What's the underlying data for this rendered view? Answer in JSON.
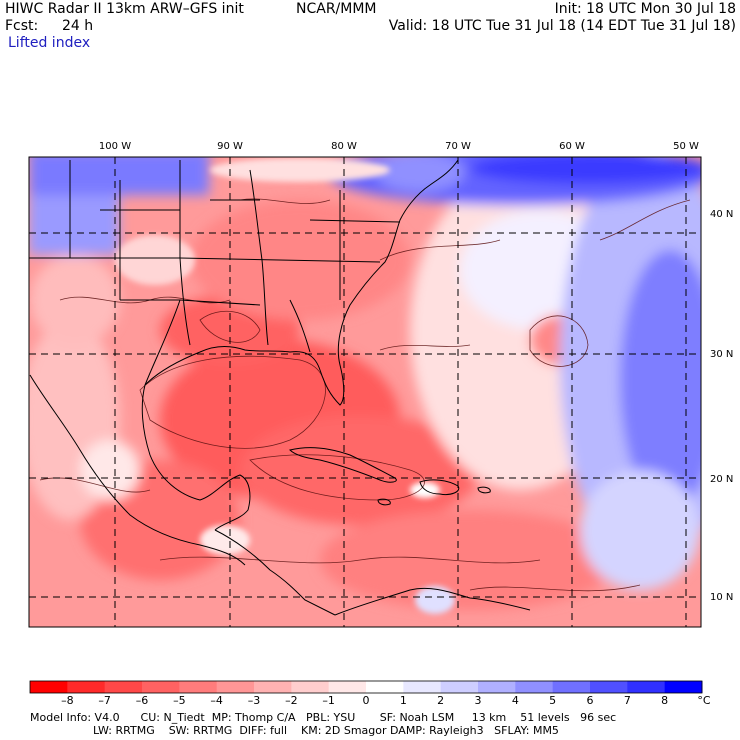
{
  "header": {
    "title_line": "HIWC Radar II 13km ARW–GFS init",
    "org": "NCAR/MMM",
    "init": "Init: 18 UTC Mon 30 Jul 18",
    "fcst_label": "Fcst:",
    "fcst_value": "24 h",
    "valid": "Valid: 18 UTC Tue 31 Jul 18 (14 EDT Tue 31 Jul 18)",
    "field": "Lifted index"
  },
  "longitudes": [
    "100 W",
    "90 W",
    "80 W",
    "70 W",
    "60 W",
    "50 W"
  ],
  "latitudes": [
    "40 N",
    "30 N",
    "20 N",
    "10 N"
  ],
  "colorscale": {
    "unit": "°C",
    "labels": [
      "–8",
      "–7",
      "–6",
      "–5",
      "–4",
      "–3",
      "–2",
      "–1",
      "0",
      "1",
      "2",
      "3",
      "4",
      "5",
      "6",
      "7",
      "8"
    ],
    "colors": [
      "#ff0000",
      "#ff2a2a",
      "#ff4848",
      "#ff6262",
      "#ff7c7c",
      "#ff9696",
      "#ffb2b2",
      "#ffcece",
      "#ffe8e8",
      "#ffffff",
      "#e8e8ff",
      "#ceceff",
      "#b0b0ff",
      "#9090ff",
      "#7070ff",
      "#5050ff",
      "#3030ff",
      "#0000ff"
    ]
  },
  "model_info": {
    "line1": "Model Info: V4.0      CU: N_Tiedt  MP: Thomp C/A   PBL: YSU       SF: Noah LSM     13 km    51 levels   96 sec",
    "line2": "                  LW: RRTMG    SW: RRTMG  DIFF: full    KM: 2D Smagor DAMP: Rayleigh3   SFLAY: MM5"
  }
}
